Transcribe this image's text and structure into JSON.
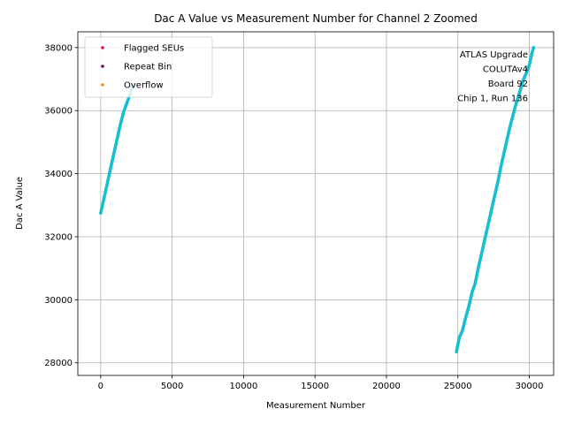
{
  "chart_data": {
    "type": "scatter",
    "title": "Dac A Value vs Measurement Number for Channel 2 Zoomed",
    "xlabel": "Measurement Number",
    "ylabel": "Dac A Value",
    "xlim": [
      -1600,
      31700
    ],
    "ylim": [
      27600,
      38500
    ],
    "xticks": [
      0,
      5000,
      10000,
      15000,
      20000,
      25000,
      30000
    ],
    "xtick_labels": [
      "0",
      "5000",
      "10000",
      "15000",
      "20000",
      "25000",
      "30000"
    ],
    "yticks": [
      28000,
      30000,
      32000,
      34000,
      36000,
      38000
    ],
    "ytick_labels": [
      "28000",
      "30000",
      "32000",
      "34000",
      "36000",
      "38000"
    ],
    "grid": true,
    "legend_position": "upper-left",
    "legend": [
      {
        "label": "Flagged SEUs",
        "color": "#dc143c"
      },
      {
        "label": "Repeat Bin",
        "color": "#6a0d59"
      },
      {
        "label": "Overflow",
        "color": "#ff8c00"
      }
    ],
    "annotation_lines": [
      "ATLAS Upgrade",
      "COLUTAv4",
      "Board 92",
      "Chip 1, Run 136"
    ],
    "series": [
      {
        "color": "#17becf",
        "segments": [
          {
            "x": [
              0,
              200,
              400,
              600,
              800,
              1000,
              1200,
              1400,
              1600,
              1800,
              2000,
              2200,
              2300
            ],
            "y": [
              32750,
              33150,
              33560,
              33980,
              34390,
              34800,
              35200,
              35600,
              35950,
              36200,
              36450,
              36700,
              36800
            ]
          },
          {
            "x": [
              24900,
              25100,
              25300,
              25500,
              25800,
              26000,
              26200,
              26400,
              26600,
              26800,
              27000,
              27200,
              27400,
              27600,
              27800,
              28000,
              28200,
              28400,
              28600,
              28800,
              29000,
              29200,
              29400,
              29600,
              29800,
              30000,
              30100,
              30200,
              30300
            ],
            "y": [
              28350,
              28800,
              29000,
              29350,
              29850,
              30250,
              30500,
              30950,
              31350,
              31750,
              32150,
              32550,
              32950,
              33350,
              33750,
              34200,
              34600,
              35000,
              35400,
              35750,
              36100,
              36400,
              36700,
              37000,
              37200,
              37450,
              37650,
              37850,
              38000
            ]
          }
        ]
      }
    ]
  }
}
